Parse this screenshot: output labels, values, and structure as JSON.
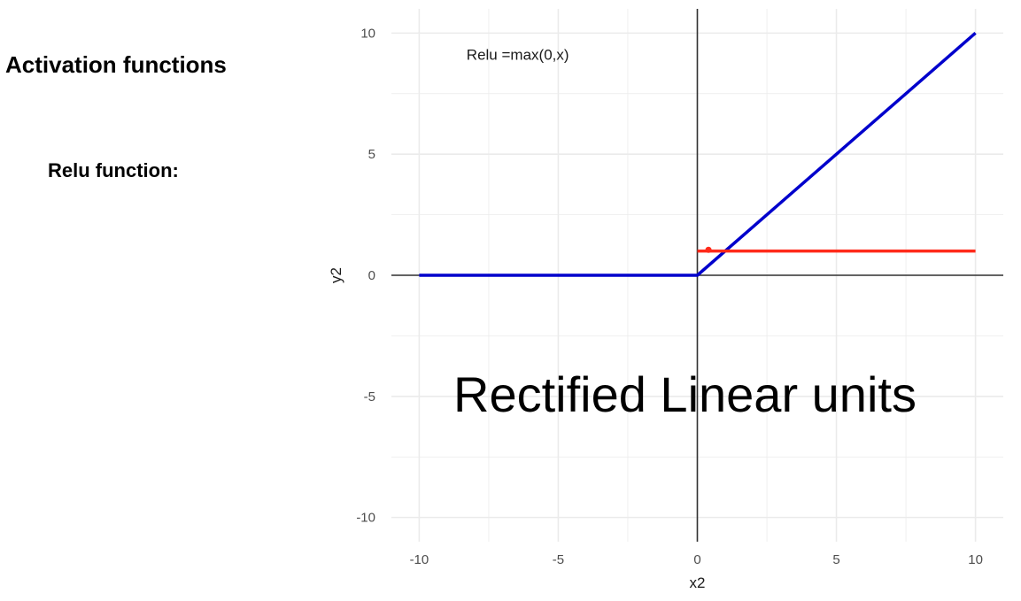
{
  "slide": {
    "heading": "Activation functions",
    "subheading": "Relu function:",
    "overlay_caption": "Rectified Linear units"
  },
  "chart_data": {
    "type": "line",
    "xlabel": "x2",
    "ylabel": "y2",
    "xlim": [
      -11,
      11
    ],
    "ylim": [
      -11,
      11
    ],
    "x_ticks": [
      -10,
      -5,
      0,
      5,
      10
    ],
    "y_ticks": [
      -10,
      -5,
      0,
      5,
      10
    ],
    "x_tick_labels": [
      "-10",
      "-5",
      "0",
      "5",
      "10"
    ],
    "y_tick_labels": [
      "-10",
      "-5",
      "0",
      "5",
      "10"
    ],
    "grid": true,
    "annotations": [
      {
        "text": "Relu =max(0,x)",
        "x": -8.3,
        "y": 8.9
      }
    ],
    "series": [
      {
        "color": "#0000cc",
        "x": [
          -10,
          0,
          10
        ],
        "y": [
          0,
          0,
          10
        ]
      },
      {
        "color": "#ff2a1a",
        "x": [
          0,
          10
        ],
        "y": [
          1,
          1
        ]
      }
    ],
    "marker": {
      "x": 0.4,
      "y": 1.05,
      "color": "#ff2a1a"
    },
    "colors": {
      "grid": "#ebebeb",
      "zero_axis": "#333333"
    }
  }
}
